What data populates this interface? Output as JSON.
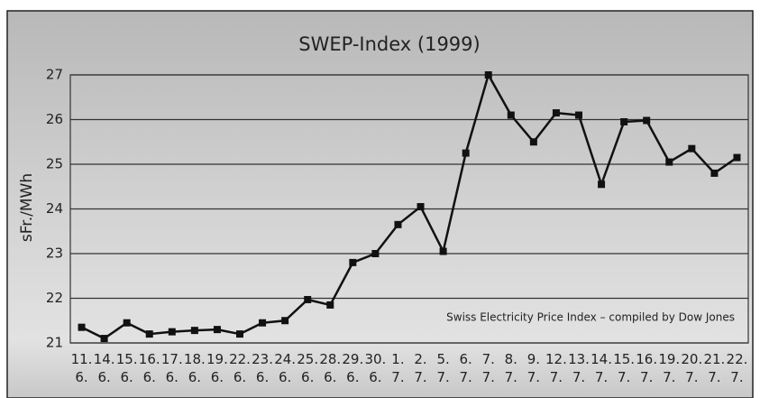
{
  "chart_data": {
    "type": "line",
    "title": "SWEP-Index (1999)",
    "y_label": "sFr./MWh",
    "annotation": "Swiss Electricity Price Index – compiled by Dow Jones",
    "categories": [
      [
        "11.",
        "6."
      ],
      [
        "14.",
        "6."
      ],
      [
        "15.",
        "6."
      ],
      [
        "16.",
        "6."
      ],
      [
        "17.",
        "6."
      ],
      [
        "18.",
        "6."
      ],
      [
        "19.",
        "6."
      ],
      [
        "22.",
        "6."
      ],
      [
        "23.",
        "6."
      ],
      [
        "24.",
        "6."
      ],
      [
        "25.",
        "6."
      ],
      [
        "28.",
        "6."
      ],
      [
        "29.",
        "6."
      ],
      [
        "30.",
        "6."
      ],
      [
        "1.",
        "7."
      ],
      [
        "2.",
        "7."
      ],
      [
        "5.",
        "7."
      ],
      [
        "6.",
        "7."
      ],
      [
        "7.",
        "7."
      ],
      [
        "8.",
        "7."
      ],
      [
        "9.",
        "7."
      ],
      [
        "12.",
        "7."
      ],
      [
        "13.",
        "7."
      ],
      [
        "14.",
        "7."
      ],
      [
        "15.",
        "7."
      ],
      [
        "16.",
        "7."
      ],
      [
        "19.",
        "7."
      ],
      [
        "20.",
        "7."
      ],
      [
        "21.",
        "7."
      ],
      [
        "22.",
        "7."
      ]
    ],
    "values": [
      21.35,
      21.1,
      21.45,
      21.2,
      21.25,
      21.28,
      21.3,
      21.2,
      21.45,
      21.5,
      21.97,
      21.85,
      22.8,
      23.0,
      23.65,
      24.05,
      23.05,
      25.25,
      27.0,
      26.1,
      25.5,
      26.15,
      26.1,
      24.55,
      25.95,
      25.98,
      25.05,
      25.35,
      24.8,
      25.15
    ],
    "color": "#111111",
    "ylim": [
      21,
      27
    ],
    "yticks": [
      21,
      22,
      23,
      24,
      25,
      26,
      27
    ],
    "grid": true
  }
}
